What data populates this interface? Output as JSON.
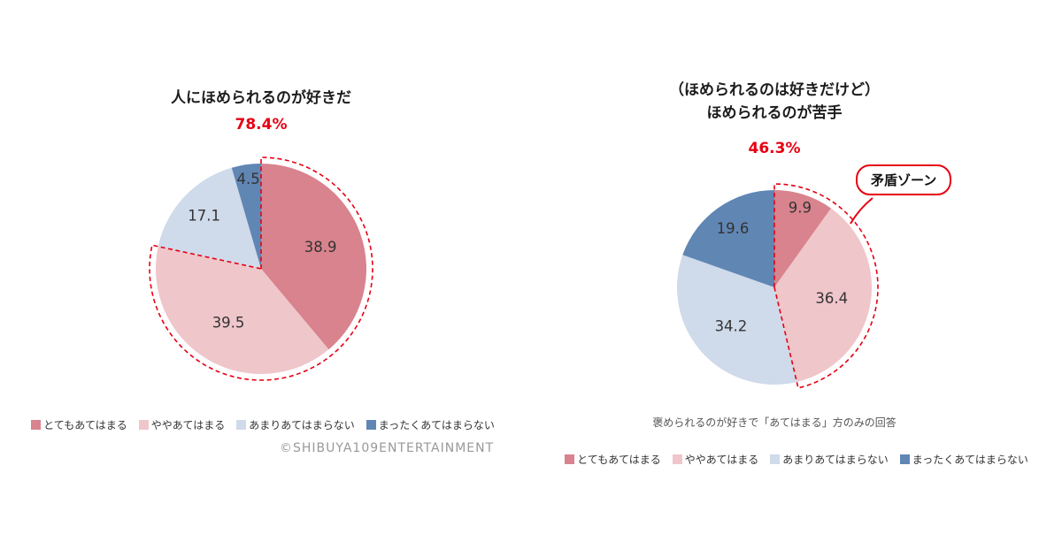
{
  "accent_red": "#e60012",
  "footer": {
    "copyright": "©SHIBUYA109ENTERTAINMENT"
  },
  "chart_data": [
    {
      "type": "pie",
      "title": "人にほめられるのが好きだ",
      "title_lines": [
        "人にほめられるのが好きだ"
      ],
      "highlight_label": "78.4%",
      "highlight_value": 78.4,
      "highlight_slices": [
        "とてもあてはまる",
        "ややあてはまる"
      ],
      "categories": [
        "とてもあてはまる",
        "ややあてはまる",
        "あまりあてはまらない",
        "まったくあてはまらない"
      ],
      "values": [
        38.9,
        39.5,
        17.1,
        4.5
      ],
      "colors": [
        "#d8838d",
        "#efc6ca",
        "#cfdaea",
        "#6086b4"
      ],
      "start_angle_deg": 0,
      "direction": "clockwise",
      "legend_position": "bottom"
    },
    {
      "type": "pie",
      "title": "（ほめられるのは好きだけど）ほめられるのが苦手",
      "title_lines": [
        "（ほめられるのは好きだけど）",
        "ほめられるのが苦手"
      ],
      "highlight_label": "46.3%",
      "highlight_value": 46.3,
      "highlight_slices": [
        "とてもあてはまる",
        "ややあてはまる"
      ],
      "annotation": "矛盾ゾーン",
      "note": "褒められるのが好きで「あてはまる」方のみの回答",
      "categories": [
        "とてもあてはまる",
        "ややあてはまる",
        "あまりあてはまらない",
        "まったくあてはまらない"
      ],
      "values": [
        9.9,
        36.4,
        34.2,
        19.6
      ],
      "colors": [
        "#d8838d",
        "#efc6ca",
        "#cfdaea",
        "#6086b4"
      ],
      "start_angle_deg": 0,
      "direction": "clockwise",
      "legend_position": "bottom"
    }
  ]
}
